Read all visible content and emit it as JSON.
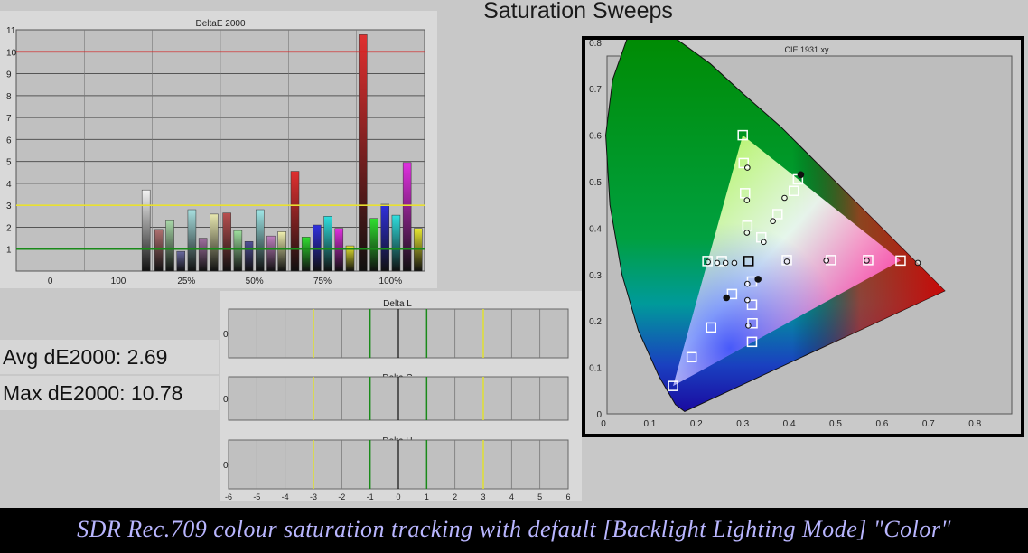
{
  "page": {
    "title": "Saturation Sweeps",
    "stats": {
      "avg": "Avg dE2000: 2.69",
      "max": "Max dE2000: 10.78"
    },
    "caption": "SDR Rec.709 colour saturation tracking with default [Backlight Lighting Mode] \"Color\""
  },
  "chart_data": [
    {
      "type": "bar",
      "title": "DeltaE 2000",
      "categories": [
        "0",
        "100",
        "25%",
        "50%",
        "75%",
        "100%"
      ],
      "ylim": [
        0,
        11
      ],
      "yticks": [
        1,
        2,
        3,
        4,
        5,
        6,
        7,
        8,
        9,
        10,
        11
      ],
      "reference_lines": [
        {
          "value": 10,
          "color": "#d42020"
        },
        {
          "value": 3,
          "color": "#e8e030"
        },
        {
          "value": 1,
          "color": "#1a8a1a"
        }
      ],
      "series_colors": [
        "#e03030",
        "#30e030",
        "#3030e0",
        "#30e0e0",
        "#e030e0",
        "#e8e830"
      ],
      "groups": [
        {
          "category": "0",
          "values": []
        },
        {
          "category": "100",
          "values": [
            3.7
          ],
          "colors": [
            "#f4f4f4"
          ]
        },
        {
          "category": "25%",
          "values": [
            1.9,
            2.3,
            0.9,
            2.8,
            1.5,
            2.6
          ]
        },
        {
          "category": "50%",
          "values": [
            2.65,
            1.85,
            1.35,
            2.8,
            1.6,
            1.8
          ]
        },
        {
          "category": "75%",
          "values": [
            4.55,
            1.55,
            2.1,
            2.5,
            1.95,
            1.15
          ]
        },
        {
          "category": "100%",
          "values": [
            10.78,
            2.4,
            3.05,
            2.55,
            4.95,
            1.95
          ]
        }
      ]
    },
    {
      "type": "scatter",
      "title": "CIE 1931 xy",
      "xlim": [
        0,
        0.85
      ],
      "ylim": [
        0,
        0.85
      ],
      "xticks": [
        "0",
        "0.1",
        "0.2",
        "0.3",
        "0.4",
        "0.5",
        "0.6",
        "0.7",
        "0.8"
      ],
      "yticks": [
        "0",
        "0.1",
        "0.2",
        "0.3",
        "0.4",
        "0.5",
        "0.6",
        "0.7",
        "0.8"
      ],
      "gamut": {
        "red": [
          0.64,
          0.33
        ],
        "green": [
          0.3,
          0.6
        ],
        "blue": [
          0.15,
          0.06
        ],
        "white": [
          0.3127,
          0.329
        ]
      },
      "targets": [
        [
          0.3127,
          0.329
        ],
        [
          0.395,
          0.331
        ],
        [
          0.49,
          0.331
        ],
        [
          0.57,
          0.331
        ],
        [
          0.64,
          0.33
        ],
        [
          0.31,
          0.405
        ],
        [
          0.305,
          0.475
        ],
        [
          0.302,
          0.54
        ],
        [
          0.3,
          0.6
        ],
        [
          0.34,
          0.38
        ],
        [
          0.375,
          0.43
        ],
        [
          0.41,
          0.48
        ],
        [
          0.419,
          0.505
        ],
        [
          0.277,
          0.258
        ],
        [
          0.232,
          0.186
        ],
        [
          0.19,
          0.122
        ],
        [
          0.15,
          0.06
        ],
        [
          0.224,
          0.329
        ],
        [
          0.255,
          0.329
        ],
        [
          0.32,
          0.285
        ],
        [
          0.32,
          0.235
        ],
        [
          0.321,
          0.195
        ],
        [
          0.32,
          0.155
        ]
      ],
      "measured": [
        [
          0.333,
          0.29
        ],
        [
          0.395,
          0.328
        ],
        [
          0.48,
          0.33
        ],
        [
          0.567,
          0.33
        ],
        [
          0.677,
          0.325
        ],
        [
          0.309,
          0.39
        ],
        [
          0.309,
          0.46
        ],
        [
          0.31,
          0.53
        ],
        [
          0.345,
          0.37
        ],
        [
          0.365,
          0.415
        ],
        [
          0.39,
          0.465
        ],
        [
          0.425,
          0.515
        ],
        [
          0.265,
          0.25
        ],
        [
          0.31,
          0.28
        ],
        [
          0.31,
          0.245
        ],
        [
          0.312,
          0.19
        ],
        [
          0.225,
          0.327
        ],
        [
          0.245,
          0.325
        ],
        [
          0.263,
          0.325
        ],
        [
          0.282,
          0.325
        ]
      ]
    },
    {
      "type": "bar",
      "title": "Delta L",
      "ylabel": "0",
      "xlim": [
        -6,
        6
      ],
      "xticks": [
        "-6",
        "-5",
        "-4",
        "-3",
        "-2",
        "-1",
        "0",
        "1",
        "2",
        "3",
        "4",
        "5",
        "6"
      ]
    },
    {
      "type": "bar",
      "title": "Delta C",
      "ylabel": "0",
      "xlim": [
        -6,
        6
      ],
      "xticks": [
        "-6",
        "-5",
        "-4",
        "-3",
        "-2",
        "-1",
        "0",
        "1",
        "2",
        "3",
        "4",
        "5",
        "6"
      ]
    },
    {
      "type": "bar",
      "title": "Delta H",
      "ylabel": "0",
      "xlim": [
        -6,
        6
      ],
      "xticks": [
        "-6",
        "-5",
        "-4",
        "-3",
        "-2",
        "-1",
        "0",
        "1",
        "2",
        "3",
        "4",
        "5",
        "6"
      ]
    }
  ]
}
